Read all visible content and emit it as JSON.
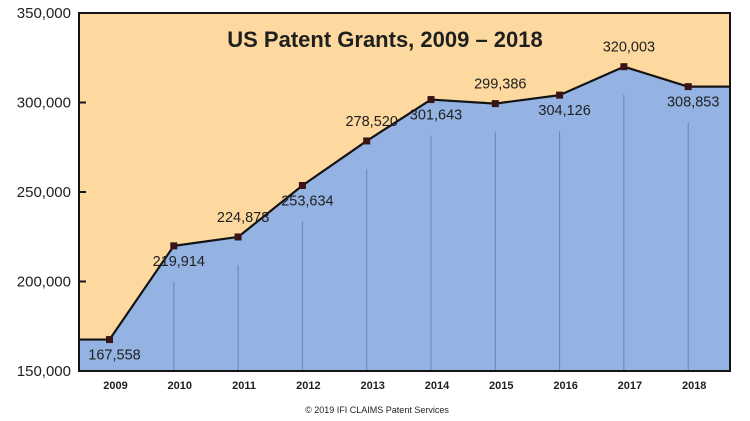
{
  "chart_data": {
    "type": "area",
    "title": "US Patent Grants, 2009 – 2018",
    "xlabel": "",
    "ylabel": "",
    "categories": [
      "2009",
      "2010",
      "2011",
      "2012",
      "2013",
      "2014",
      "2015",
      "2016",
      "2017",
      "2018"
    ],
    "values": [
      167558,
      219914,
      224878,
      253634,
      278520,
      301643,
      299386,
      304126,
      320003,
      308853
    ],
    "data_labels": [
      "167,558",
      "219,914",
      "224,878",
      "253,634",
      "278,520",
      "301,643",
      "299,386",
      "304,126",
      "320,003",
      "308,853"
    ],
    "ylim": [
      150000,
      350000
    ],
    "yticks": [
      150000,
      200000,
      250000,
      300000,
      350000
    ],
    "ytick_labels": [
      "150,000",
      "200,000",
      "250,000",
      "300,000",
      "350,000"
    ],
    "grid": true,
    "legend": "none"
  },
  "credit": "© 2019 IFI CLAIMS Patent Services",
  "colors": {
    "background": "#fdd9a0",
    "area_fill": "#94b3e2",
    "line": "#141414",
    "marker": "#3a1414",
    "gridline": "#5c84c8",
    "frame": "#141414",
    "text": "#1f1f1f"
  }
}
